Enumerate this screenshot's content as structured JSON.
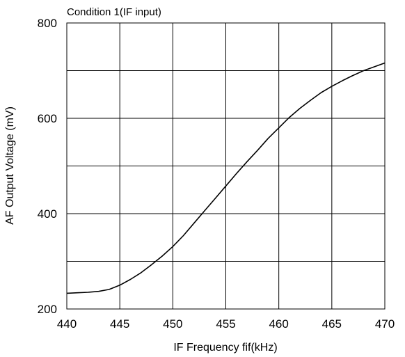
{
  "chart_data": {
    "type": "line",
    "title": "Condition 1(IF input)",
    "xlabel": "IF Frequency fif(kHz)",
    "ylabel": "AF Output Voltage (mV)",
    "xlim": [
      440,
      470
    ],
    "ylim": [
      200,
      800
    ],
    "x_ticks": [
      440,
      445,
      450,
      455,
      460,
      465,
      470
    ],
    "y_ticks": [
      200,
      400,
      600,
      800
    ],
    "x_tick_labels": [
      "440",
      "445",
      "450",
      "455",
      "460",
      "465",
      "470"
    ],
    "y_tick_labels": [
      "200",
      "400",
      "600",
      "800"
    ],
    "x_gridlines": [
      440,
      445,
      450,
      455,
      460,
      465,
      470
    ],
    "y_gridlines": [
      200,
      300,
      400,
      500,
      600,
      700,
      800
    ],
    "grid": true,
    "legend": "none",
    "line_color": "#000000",
    "series": [
      {
        "x": [
          440,
          441,
          442,
          443,
          444,
          445,
          446,
          447,
          448,
          449,
          450,
          451,
          452,
          453,
          454,
          455,
          456,
          457,
          458,
          459,
          460,
          461,
          462,
          463,
          464,
          465,
          466,
          467,
          468,
          469,
          470
        ],
        "values": [
          233,
          234,
          235,
          237,
          241,
          250,
          262,
          276,
          293,
          311,
          331,
          354,
          380,
          406,
          432,
          458,
          484,
          509,
          533,
          558,
          580,
          602,
          621,
          638,
          654,
          667,
          679,
          690,
          700,
          708,
          716
        ]
      }
    ]
  }
}
